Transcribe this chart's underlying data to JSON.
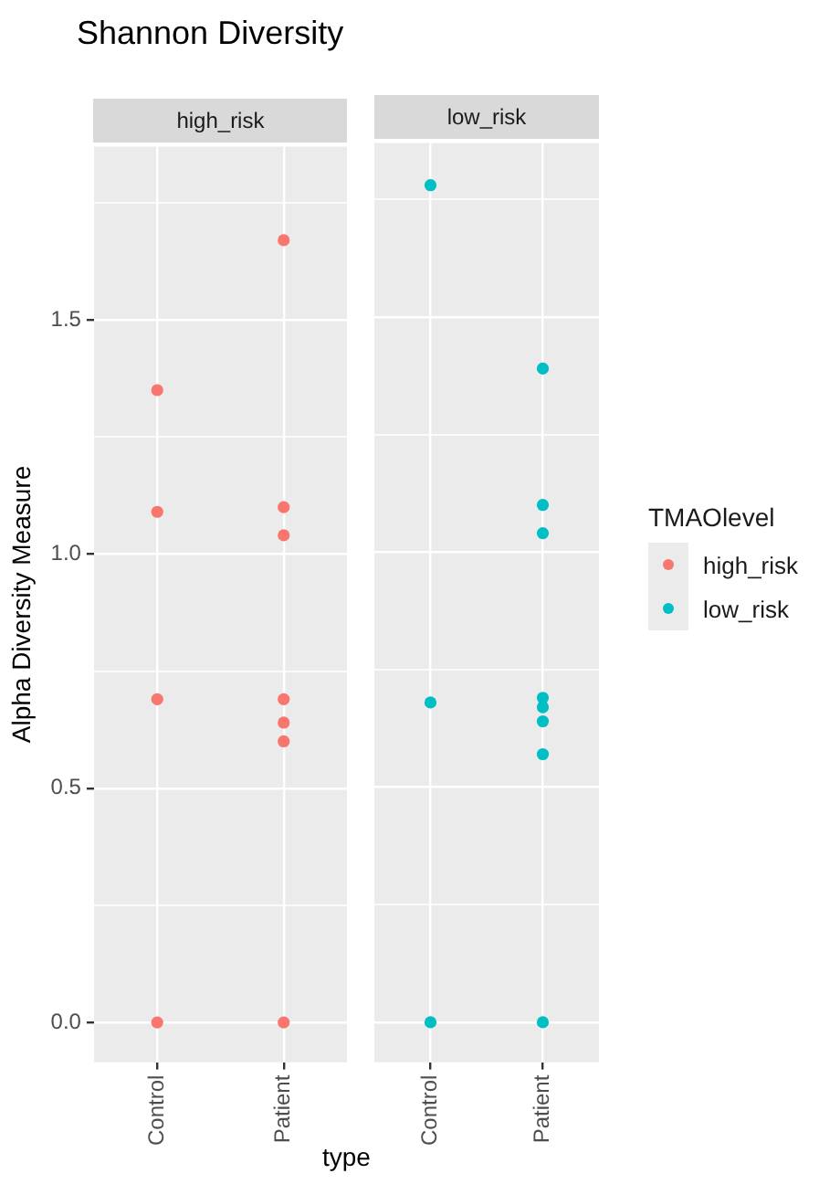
{
  "chart_data": [
    {
      "type": "scatter",
      "title": "Shannon Diversity",
      "subtitle": "high_risk",
      "xlabel": "type",
      "ylabel": "Alpha Diversity Measure",
      "categories": [
        "Control",
        "Patient"
      ],
      "series": [
        {
          "name": "high_risk",
          "color": "#f8766d",
          "x": [
            "Control",
            "Control",
            "Control",
            "Control",
            "Patient",
            "Patient",
            "Patient",
            "Patient",
            "Patient",
            "Patient",
            "Patient"
          ],
          "values": [
            1.35,
            1.09,
            0.69,
            0,
            1.67,
            1.1,
            1.04,
            0.69,
            0.64,
            0.6,
            0
          ]
        }
      ],
      "ylim": [
        -0.085,
        1.87
      ],
      "yticks": [
        {
          "value": 0,
          "label": "0.0"
        },
        {
          "value": 0.25,
          "label": null
        },
        0.5,
        {
          "value": 0.75,
          "label": null
        },
        {
          "value": 1,
          "label": "1.0"
        },
        {
          "value": 1.25,
          "label": null
        },
        1.5,
        {
          "value": 1.75,
          "label": null
        }
      ],
      "grid": true,
      "legend": "right",
      "marker": "circle"
    },
    {
      "type": "scatter",
      "subtitle": "low_risk",
      "legend_title": "TMAOlevel",
      "categories": [
        "Control",
        "Patient"
      ],
      "series": [
        {
          "name": "low_risk",
          "color": "#00bfc4",
          "x": [
            "Control",
            "Control",
            "Control",
            "Patient",
            "Patient",
            "Patient",
            "Patient",
            "Patient",
            "Patient",
            "Patient",
            "Patient"
          ],
          "values": [
            1.78,
            0.68,
            0,
            1.39,
            1.1,
            1.04,
            0.69,
            0.67,
            0.64,
            0.57,
            0
          ]
        }
      ],
      "ylim": [
        -0.085,
        1.87
      ],
      "yticks": [
        0,
        {
          "value": 0.25,
          "label": null
        },
        0.5,
        {
          "value": 0.75,
          "label": null
        },
        1,
        {
          "value": 1.25,
          "label": null
        },
        1.5,
        {
          "value": 1.75,
          "label": null
        }
      ],
      "tick_labels": "x",
      "grid": true,
      "legend": "right",
      "marker": "circle"
    }
  ]
}
